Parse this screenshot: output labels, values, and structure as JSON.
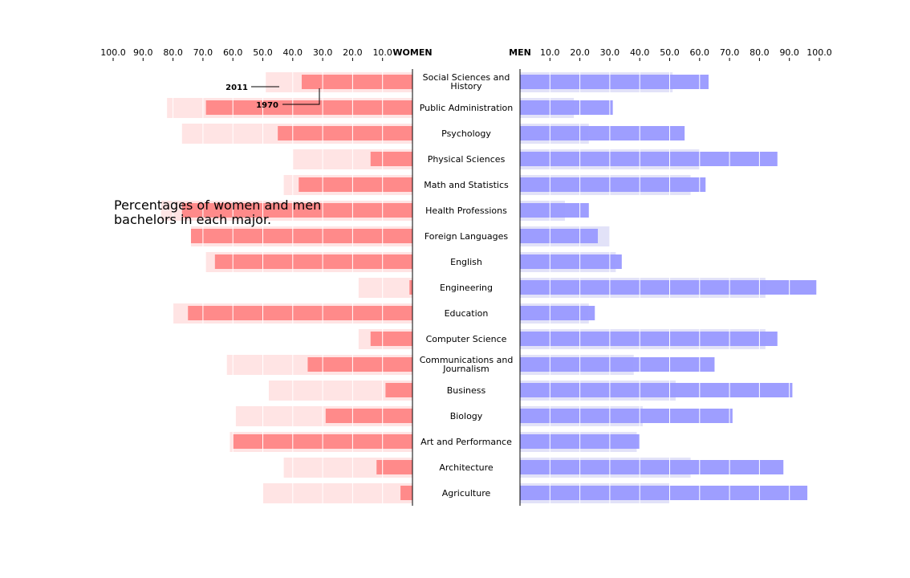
{
  "chart_data": {
    "type": "bar",
    "orientation": "horizontal",
    "layout": "back-to-back",
    "description": [
      "Percentages of women and men",
      "bachelors in each major."
    ],
    "women_label": "WOMEN",
    "men_label": "MEN",
    "xlim": [
      0,
      100
    ],
    "ticks": [
      "10.0",
      "20.0",
      "30.0",
      "40.0",
      "50.0",
      "60.0",
      "70.0",
      "80.0",
      "90.0",
      "100.0"
    ],
    "tick_values": [
      10,
      20,
      30,
      40,
      50,
      60,
      70,
      80,
      90,
      100
    ],
    "grid": "vertical white lines over bars",
    "categories": [
      [
        "Social Sciences and",
        "History"
      ],
      [
        "Public Administration"
      ],
      [
        "Psychology"
      ],
      [
        "Physical Sciences"
      ],
      [
        "Math and Statistics"
      ],
      [
        "Health Professions"
      ],
      [
        "Foreign Languages"
      ],
      [
        "English"
      ],
      [
        "Engineering"
      ],
      [
        "Education"
      ],
      [
        "Computer Science"
      ],
      [
        "Communications and",
        "Journalism"
      ],
      [
        "Business"
      ],
      [
        "Biology"
      ],
      [
        "Art and Performance"
      ],
      [
        "Architecture"
      ],
      [
        "Agriculture"
      ]
    ],
    "series": [
      {
        "name": "1970",
        "side": "women",
        "values": [
          49,
          82,
          77,
          40,
          43,
          84,
          74,
          69,
          18,
          80,
          18,
          62,
          48,
          59,
          61,
          43,
          50
        ]
      },
      {
        "name": "2011",
        "side": "women",
        "values": [
          37,
          69,
          45,
          14,
          38,
          77,
          74,
          66,
          1,
          75,
          14,
          35,
          9,
          29,
          60,
          12,
          4
        ]
      },
      {
        "name": "1970",
        "side": "men",
        "values": [
          51,
          18,
          23,
          60,
          57,
          15,
          30,
          32,
          82,
          23,
          82,
          38,
          52,
          41,
          39,
          57,
          50
        ]
      },
      {
        "name": "2011",
        "side": "men",
        "values": [
          63,
          31,
          55,
          86,
          62,
          23,
          26,
          34,
          99,
          25,
          86,
          65,
          91,
          71,
          40,
          88,
          96
        ]
      }
    ],
    "annotations": [
      {
        "text": "2011",
        "category_index": 0
      },
      {
        "text": "1970",
        "category_index": 1
      }
    ],
    "colors": {
      "women_2011": "#ff8a8a",
      "women_1970": "#ffe4e4",
      "men_2011": "#9999ff",
      "men_1970": "#e2e2f8",
      "grid": "#ffffff",
      "axis": "#000000"
    }
  }
}
